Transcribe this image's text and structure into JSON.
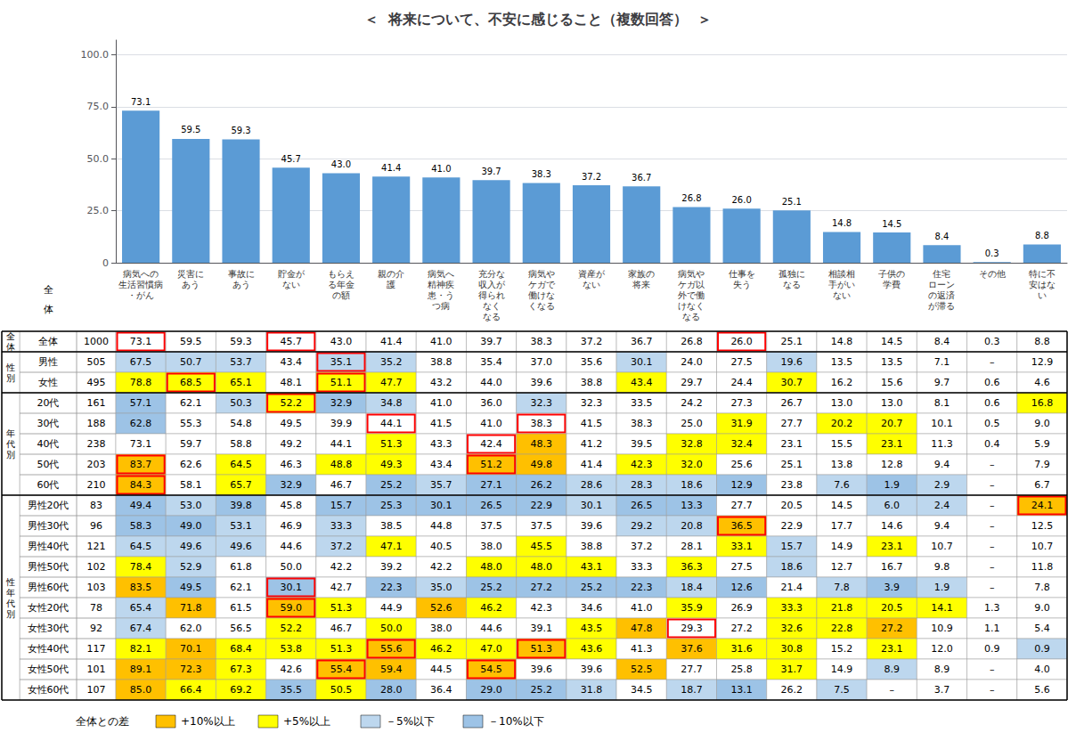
{
  "chart_data": [
    {
      "type": "bar",
      "title": "＜  将来について、不安に感じること（複数回答）  ＞",
      "categories": [
        "病気への\n生活習慣病\n・がん",
        "災害に\nあう",
        "事故に\nあう",
        "貯金が\nない",
        "もらえ\nる年金\nの額",
        "親の介\n護",
        "病気へ\n精神疾\n患・う\nつ病",
        "充分な\n収入が\n得られ\nなく\nなる",
        "病気や\nケガで\n働けな\nくなる",
        "資産が\nない",
        "家族の\n将来",
        "病気や\nケガ以\n外で働\nけなく\nなる",
        "仕事を\n失う",
        "孤独に\nなる",
        "相談相\n手がい\nない",
        "子供の\n学費",
        "住宅\nローン\nの返済\nが滞る",
        "その他",
        "特に不\n安はな\nい"
      ],
      "values": [
        73.1,
        59.5,
        59.3,
        45.7,
        43.0,
        41.4,
        41.0,
        39.7,
        38.3,
        37.2,
        36.7,
        26.8,
        26.0,
        25.1,
        14.8,
        14.5,
        8.4,
        0.3,
        8.8
      ],
      "value_labels": [
        "73.1",
        "59.5",
        "59.3",
        "45.7",
        "43.0",
        "41.4",
        "41.0",
        "39.7",
        "38.3",
        "37.2",
        "36.7",
        "26.8",
        "26.0",
        "25.1",
        "14.8",
        "14.5",
        "8.4",
        "0.3",
        "8.8"
      ],
      "color": "#5B9BD5",
      "ylim": [
        0,
        107
      ],
      "yticks": [
        0,
        {
          "value": 25,
          "label": "25.0"
        },
        {
          "value": 50,
          "label": "50.0"
        },
        {
          "value": 75,
          "label": "75.0"
        },
        {
          "value": 100,
          "label": "100.0"
        }
      ],
      "grid": true,
      "data_labels": true
    },
    {
      "type": "table",
      "row_header": [
        "全",
        "体"
      ],
      "rows": [
        "全体",
        "男性",
        "女性",
        "20代",
        "30代",
        "40代",
        "50代",
        "60代",
        "男性20代",
        "男性30代",
        "男性40代",
        "男性50代",
        "男性60代",
        "女性20代",
        "女性30代",
        "女性40代",
        "女性50代",
        "女性60代"
      ],
      "row_n": [
        1000,
        505,
        495,
        161,
        188,
        238,
        203,
        210,
        83,
        96,
        121,
        102,
        103,
        78,
        92,
        117,
        101,
        107
      ],
      "groups": [
        {
          "label": "全\n体",
          "span": 1
        },
        {
          "label": "性\n別",
          "span": 2
        },
        {
          "label": "年\n代\n別",
          "span": 5
        },
        {
          "label": "性\n年\n代\n別",
          "span": 10
        }
      ],
      "reference_row": "全体",
      "values": [
        [
          73.1,
          59.5,
          59.3,
          45.7,
          43.0,
          41.4,
          41.0,
          39.7,
          38.3,
          37.2,
          36.7,
          26.8,
          26.0,
          25.1,
          14.8,
          14.5,
          8.4,
          0.3,
          8.8
        ],
        [
          67.5,
          50.7,
          53.7,
          43.4,
          35.1,
          35.2,
          38.8,
          35.4,
          37.0,
          35.6,
          30.1,
          24.0,
          27.5,
          19.6,
          13.5,
          13.5,
          7.1,
          null,
          12.9
        ],
        [
          78.8,
          68.5,
          65.1,
          48.1,
          51.1,
          47.7,
          43.2,
          44.0,
          39.6,
          38.8,
          43.4,
          29.7,
          24.4,
          30.7,
          16.2,
          15.6,
          9.7,
          0.6,
          4.6
        ],
        [
          57.1,
          62.1,
          50.3,
          52.2,
          32.9,
          34.8,
          41.0,
          36.0,
          32.3,
          32.3,
          33.5,
          24.2,
          27.3,
          26.7,
          13.0,
          13.0,
          8.1,
          0.6,
          16.8
        ],
        [
          62.8,
          55.3,
          54.8,
          49.5,
          39.9,
          44.1,
          41.5,
          41.0,
          38.3,
          41.5,
          38.3,
          25.0,
          31.9,
          27.7,
          20.2,
          20.7,
          10.1,
          0.5,
          9.0
        ],
        [
          73.1,
          59.7,
          58.8,
          49.2,
          44.1,
          51.3,
          43.3,
          42.4,
          48.3,
          41.2,
          39.5,
          32.8,
          32.4,
          23.1,
          15.5,
          23.1,
          11.3,
          0.4,
          5.9
        ],
        [
          83.7,
          62.6,
          64.5,
          46.3,
          48.8,
          49.3,
          43.4,
          51.2,
          49.8,
          41.4,
          42.3,
          32.0,
          25.6,
          25.1,
          13.8,
          12.8,
          9.4,
          null,
          7.9
        ],
        [
          84.3,
          58.1,
          65.7,
          32.9,
          46.7,
          25.2,
          35.7,
          27.1,
          26.2,
          28.6,
          28.3,
          18.6,
          12.9,
          23.8,
          7.6,
          1.9,
          2.9,
          null,
          6.7
        ],
        [
          49.4,
          53.0,
          39.8,
          45.8,
          15.7,
          25.3,
          30.1,
          26.5,
          22.9,
          30.1,
          26.5,
          13.3,
          27.7,
          20.5,
          14.5,
          6.0,
          2.4,
          null,
          24.1
        ],
        [
          58.3,
          49.0,
          53.1,
          46.9,
          33.3,
          38.5,
          44.8,
          37.5,
          37.5,
          39.6,
          29.2,
          20.8,
          36.5,
          22.9,
          17.7,
          14.6,
          9.4,
          null,
          12.5
        ],
        [
          64.5,
          49.6,
          49.6,
          44.6,
          37.2,
          47.1,
          40.5,
          38.0,
          45.5,
          38.8,
          37.2,
          28.1,
          33.1,
          15.7,
          14.9,
          23.1,
          10.7,
          null,
          10.7
        ],
        [
          78.4,
          52.9,
          61.8,
          50.0,
          42.2,
          39.2,
          42.2,
          48.0,
          48.0,
          43.1,
          33.3,
          36.3,
          27.5,
          18.6,
          12.7,
          16.7,
          9.8,
          null,
          11.8
        ],
        [
          83.5,
          49.5,
          62.1,
          30.1,
          42.7,
          22.3,
          35.0,
          25.2,
          27.2,
          25.2,
          22.3,
          18.4,
          12.6,
          21.4,
          7.8,
          3.9,
          1.9,
          null,
          7.8
        ],
        [
          65.4,
          71.8,
          61.5,
          59.0,
          51.3,
          44.9,
          52.6,
          46.2,
          42.3,
          34.6,
          41.0,
          35.9,
          26.9,
          33.3,
          21.8,
          20.5,
          14.1,
          1.3,
          9.0
        ],
        [
          67.4,
          62.0,
          56.5,
          52.2,
          46.7,
          50.0,
          38.0,
          44.6,
          39.1,
          43.5,
          47.8,
          29.3,
          27.2,
          32.6,
          22.8,
          27.2,
          10.9,
          1.1,
          5.4
        ],
        [
          82.1,
          70.1,
          68.4,
          53.8,
          51.3,
          55.6,
          46.2,
          47.0,
          51.3,
          43.6,
          41.3,
          37.6,
          31.6,
          30.8,
          15.2,
          23.1,
          12.0,
          0.9,
          0.9
        ],
        [
          89.1,
          72.3,
          67.3,
          42.6,
          55.4,
          59.4,
          44.5,
          54.5,
          39.6,
          39.6,
          52.5,
          27.7,
          25.8,
          31.7,
          14.9,
          8.9,
          8.9,
          null,
          4.0
        ],
        [
          85.0,
          66.4,
          69.2,
          35.5,
          50.5,
          28.0,
          36.4,
          29.0,
          25.2,
          31.8,
          34.5,
          18.7,
          13.1,
          26.2,
          7.5,
          null,
          3.7,
          null,
          5.6
        ]
      ],
      "value_labels": [
        [
          "73.1",
          "59.5",
          "59.3",
          "45.7",
          "43.0",
          "41.4",
          "41.0",
          "39.7",
          "38.3",
          "37.2",
          "36.7",
          "26.8",
          "26.0",
          "25.1",
          "14.8",
          "14.5",
          "8.4",
          "0.3",
          "8.8"
        ],
        [
          "67.5",
          "50.7",
          "53.7",
          "43.4",
          "35.1",
          "35.2",
          "38.8",
          "35.4",
          "37.0",
          "35.6",
          "30.1",
          "24.0",
          "27.5",
          "19.6",
          "13.5",
          "13.5",
          "7.1",
          "–",
          "12.9"
        ],
        [
          "78.8",
          "68.5",
          "65.1",
          "48.1",
          "51.1",
          "47.7",
          "43.2",
          "44.0",
          "39.6",
          "38.8",
          "43.4",
          "29.7",
          "24.4",
          "30.7",
          "16.2",
          "15.6",
          "9.7",
          "0.6",
          "4.6"
        ],
        [
          "57.1",
          "62.1",
          "50.3",
          "52.2",
          "32.9",
          "34.8",
          "41.0",
          "36.0",
          "32.3",
          "32.3",
          "33.5",
          "24.2",
          "27.3",
          "26.7",
          "13.0",
          "13.0",
          "8.1",
          "0.6",
          "16.8"
        ],
        [
          "62.8",
          "55.3",
          "54.8",
          "49.5",
          "39.9",
          "44.1",
          "41.5",
          "41.0",
          "38.3",
          "41.5",
          "38.3",
          "25.0",
          "31.9",
          "27.7",
          "20.2",
          "20.7",
          "10.1",
          "0.5",
          "9.0"
        ],
        [
          "73.1",
          "59.7",
          "58.8",
          "49.2",
          "44.1",
          "51.3",
          "43.3",
          "42.4",
          "48.3",
          "41.2",
          "39.5",
          "32.8",
          "32.4",
          "23.1",
          "15.5",
          "23.1",
          "11.3",
          "0.4",
          "5.9"
        ],
        [
          "83.7",
          "62.6",
          "64.5",
          "46.3",
          "48.8",
          "49.3",
          "43.4",
          "51.2",
          "49.8",
          "41.4",
          "42.3",
          "32.0",
          "25.6",
          "25.1",
          "13.8",
          "12.8",
          "9.4",
          "–",
          "7.9"
        ],
        [
          "84.3",
          "58.1",
          "65.7",
          "32.9",
          "46.7",
          "25.2",
          "35.7",
          "27.1",
          "26.2",
          "28.6",
          "28.3",
          "18.6",
          "12.9",
          "23.8",
          "7.6",
          "1.9",
          "2.9",
          "–",
          "6.7"
        ],
        [
          "49.4",
          "53.0",
          "39.8",
          "45.8",
          "15.7",
          "25.3",
          "30.1",
          "26.5",
          "22.9",
          "30.1",
          "26.5",
          "13.3",
          "27.7",
          "20.5",
          "14.5",
          "6.0",
          "2.4",
          "–",
          "24.1"
        ],
        [
          "58.3",
          "49.0",
          "53.1",
          "46.9",
          "33.3",
          "38.5",
          "44.8",
          "37.5",
          "37.5",
          "39.6",
          "29.2",
          "20.8",
          "36.5",
          "22.9",
          "17.7",
          "14.6",
          "9.4",
          "–",
          "12.5"
        ],
        [
          "64.5",
          "49.6",
          "49.6",
          "44.6",
          "37.2",
          "47.1",
          "40.5",
          "38.0",
          "45.5",
          "38.8",
          "37.2",
          "28.1",
          "33.1",
          "15.7",
          "14.9",
          "23.1",
          "10.7",
          "–",
          "10.7"
        ],
        [
          "78.4",
          "52.9",
          "61.8",
          "50.0",
          "42.2",
          "39.2",
          "42.2",
          "48.0",
          "48.0",
          "43.1",
          "33.3",
          "36.3",
          "27.5",
          "18.6",
          "12.7",
          "16.7",
          "9.8",
          "–",
          "11.8"
        ],
        [
          "83.5",
          "49.5",
          "62.1",
          "30.1",
          "42.7",
          "22.3",
          "35.0",
          "25.2",
          "27.2",
          "25.2",
          "22.3",
          "18.4",
          "12.6",
          "21.4",
          "7.8",
          "3.9",
          "1.9",
          "–",
          "7.8"
        ],
        [
          "65.4",
          "71.8",
          "61.5",
          "59.0",
          "51.3",
          "44.9",
          "52.6",
          "46.2",
          "42.3",
          "34.6",
          "41.0",
          "35.9",
          "26.9",
          "33.3",
          "21.8",
          "20.5",
          "14.1",
          "1.3",
          "9.0"
        ],
        [
          "67.4",
          "62.0",
          "56.5",
          "52.2",
          "46.7",
          "50.0",
          "38.0",
          "44.6",
          "39.1",
          "43.5",
          "47.8",
          "29.3",
          "27.2",
          "32.6",
          "22.8",
          "27.2",
          "10.9",
          "1.1",
          "5.4"
        ],
        [
          "82.1",
          "70.1",
          "68.4",
          "53.8",
          "51.3",
          "55.6",
          "46.2",
          "47.0",
          "51.3",
          "43.6",
          "41.3",
          "37.6",
          "31.6",
          "30.8",
          "15.2",
          "23.1",
          "12.0",
          "0.9",
          "0.9"
        ],
        [
          "89.1",
          "72.3",
          "67.3",
          "42.6",
          "55.4",
          "59.4",
          "44.5",
          "54.5",
          "39.6",
          "39.6",
          "52.5",
          "27.7",
          "25.8",
          "31.7",
          "14.9",
          "8.9",
          "8.9",
          "–",
          "4.0"
        ],
        [
          "85.0",
          "66.4",
          "69.2",
          "35.5",
          "50.5",
          "28.0",
          "36.4",
          "29.0",
          "25.2",
          "31.8",
          "34.5",
          "18.7",
          "13.1",
          "26.2",
          "7.5",
          "–",
          "3.7",
          "–",
          "5.6"
        ]
      ],
      "outlined": [
        [
          0,
          0
        ],
        [
          0,
          3
        ],
        [
          0,
          12
        ],
        [
          1,
          4
        ],
        [
          2,
          1
        ],
        [
          2,
          4
        ],
        [
          3,
          3
        ],
        [
          4,
          5
        ],
        [
          4,
          8
        ],
        [
          5,
          7
        ],
        [
          6,
          0
        ],
        [
          6,
          7
        ],
        [
          7,
          0
        ],
        [
          8,
          18
        ],
        [
          9,
          12
        ],
        [
          12,
          3
        ],
        [
          13,
          3
        ],
        [
          14,
          11
        ],
        [
          15,
          5
        ],
        [
          15,
          8
        ],
        [
          16,
          4
        ],
        [
          16,
          7
        ]
      ],
      "outline_color": "red",
      "color_key": {
        "title": "全体との差",
        "bins": [
          {
            "label": "+10%以上",
            "min": 10,
            "color": "#FFC000"
          },
          {
            "label": "+5%以上",
            "min": 5,
            "color": "#FFFF00"
          },
          {
            "label": "－5%以下",
            "max": -5,
            "color": "#BDD7EE"
          },
          {
            "label": "－10%以下",
            "max": -10,
            "color": "#9DC3E6"
          }
        ]
      }
    }
  ]
}
